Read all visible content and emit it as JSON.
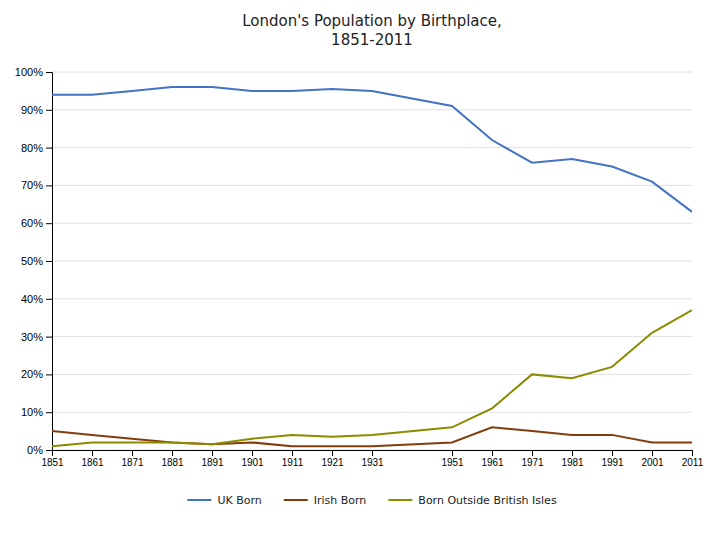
{
  "chart_data": {
    "type": "line",
    "title": "London's Population by Birthplace,\n1851-2011",
    "x": [
      1851,
      1861,
      1871,
      1881,
      1891,
      1901,
      1911,
      1921,
      1931,
      1951,
      1961,
      1971,
      1981,
      1991,
      2001,
      2011
    ],
    "xlim": [
      1851,
      2011
    ],
    "xticks": [
      1851,
      1861,
      1871,
      1881,
      1891,
      1901,
      1911,
      1921,
      1931,
      1951,
      1961,
      1971,
      1981,
      1991,
      2001,
      2011
    ],
    "ylim": [
      0,
      100
    ],
    "yticks": [
      {
        "value": 0,
        "label": "0%"
      },
      {
        "value": 10,
        "label": "10%"
      },
      {
        "value": 20,
        "label": "20%"
      },
      {
        "value": 30,
        "label": "30%"
      },
      {
        "value": 40,
        "label": "40%"
      },
      {
        "value": 50,
        "label": "50%"
      },
      {
        "value": 60,
        "label": "60%"
      },
      {
        "value": 70,
        "label": "70%"
      },
      {
        "value": 80,
        "label": "80%"
      },
      {
        "value": 90,
        "label": "90%"
      },
      {
        "value": 100,
        "label": "100%"
      }
    ],
    "grid": true,
    "legend": "bottom",
    "series": [
      {
        "name": "UK Born",
        "color": "#4472c4",
        "values": [
          94,
          94,
          95,
          96,
          96,
          95,
          95,
          95.5,
          95,
          91,
          82,
          76,
          77,
          75,
          71,
          63
        ]
      },
      {
        "name": "Irish Born",
        "color": "#843c0c",
        "values": [
          5,
          4,
          3,
          2,
          1.5,
          2,
          1,
          1,
          1,
          2,
          6,
          5,
          4,
          4,
          2,
          2
        ]
      },
      {
        "name": "Born Outside British Isles",
        "color": "#8b8b00",
        "values": [
          1,
          2,
          2,
          2,
          1.5,
          3,
          4,
          3.5,
          4,
          6,
          11,
          20,
          19,
          22,
          31,
          37
        ]
      }
    ]
  }
}
